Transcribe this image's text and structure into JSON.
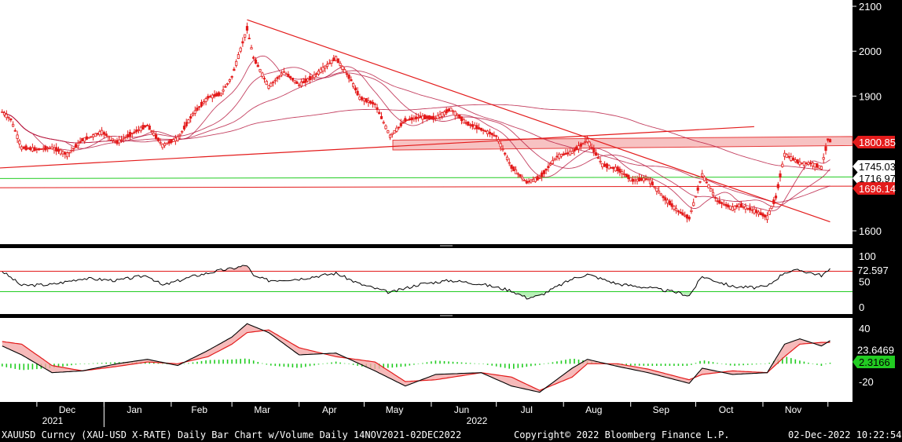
{
  "chart_data": [
    {
      "type": "candlestick",
      "panel": "price",
      "y_ticks": [
        "2100",
        "2000",
        "1900",
        "1600"
      ],
      "ylim": [
        1600,
        2100
      ],
      "price_badges": [
        {
          "label": "1800.85",
          "value": 1800.85,
          "color": "#e31b1b",
          "text_color": "#ffffff"
        },
        {
          "label": "1745.03",
          "value": 1745.03,
          "color": "#ffffff",
          "text_color": "#000000"
        },
        {
          "label": "1716.97",
          "value": 1716.97,
          "color": "#ffffff",
          "text_color": "#000000"
        },
        {
          "label": "1696.14",
          "value": 1696.14,
          "color": "#e31b1b",
          "text_color": "#ffffff"
        }
      ],
      "x_months": [
        "Dec",
        "Jan",
        "Feb",
        "Mar",
        "Apr",
        "May",
        "Jun",
        "Jul",
        "Aug",
        "Sep",
        "Oct",
        "Nov"
      ],
      "x_years": [
        "2021",
        "2022"
      ],
      "series_color": "#e31b1b",
      "support_levels": [
        {
          "value": 1720,
          "color": "#22cc22"
        },
        {
          "value": 1696,
          "color": "#e31b1b"
        }
      ],
      "resistance_zone": [
        1790,
        1810
      ],
      "trendlines": [
        {
          "from": [
            "2021-11-14",
            1740
          ],
          "to": [
            "2022-10-28",
            1832
          ]
        },
        {
          "from": [
            "2022-03-08",
            2070
          ],
          "to": [
            "2022-12-02",
            1620
          ]
        }
      ],
      "closes": [
        {
          "date": "2021-11-15",
          "value": 1865
        },
        {
          "date": "2021-11-19",
          "value": 1848
        },
        {
          "date": "2021-11-24",
          "value": 1785
        },
        {
          "date": "2021-12-01",
          "value": 1781
        },
        {
          "date": "2021-12-08",
          "value": 1785
        },
        {
          "date": "2021-12-15",
          "value": 1770
        },
        {
          "date": "2021-12-22",
          "value": 1802
        },
        {
          "date": "2021-12-31",
          "value": 1820
        },
        {
          "date": "2022-01-07",
          "value": 1797
        },
        {
          "date": "2022-01-14",
          "value": 1817
        },
        {
          "date": "2022-01-21",
          "value": 1835
        },
        {
          "date": "2022-01-28",
          "value": 1790
        },
        {
          "date": "2022-02-04",
          "value": 1806
        },
        {
          "date": "2022-02-11",
          "value": 1860
        },
        {
          "date": "2022-02-18",
          "value": 1897
        },
        {
          "date": "2022-02-24",
          "value": 1905
        },
        {
          "date": "2022-03-01",
          "value": 1943
        },
        {
          "date": "2022-03-08",
          "value": 2050
        },
        {
          "date": "2022-03-11",
          "value": 1985
        },
        {
          "date": "2022-03-18",
          "value": 1921
        },
        {
          "date": "2022-03-25",
          "value": 1954
        },
        {
          "date": "2022-04-01",
          "value": 1925
        },
        {
          "date": "2022-04-08",
          "value": 1945
        },
        {
          "date": "2022-04-18",
          "value": 1985
        },
        {
          "date": "2022-04-25",
          "value": 1935
        },
        {
          "date": "2022-04-29",
          "value": 1896
        },
        {
          "date": "2022-05-06",
          "value": 1882
        },
        {
          "date": "2022-05-13",
          "value": 1811
        },
        {
          "date": "2022-05-20",
          "value": 1846
        },
        {
          "date": "2022-05-27",
          "value": 1853
        },
        {
          "date": "2022-06-03",
          "value": 1851
        },
        {
          "date": "2022-06-10",
          "value": 1871
        },
        {
          "date": "2022-06-17",
          "value": 1840
        },
        {
          "date": "2022-06-24",
          "value": 1826
        },
        {
          "date": "2022-07-01",
          "value": 1811
        },
        {
          "date": "2022-07-08",
          "value": 1742
        },
        {
          "date": "2022-07-15",
          "value": 1708
        },
        {
          "date": "2022-07-21",
          "value": 1718
        },
        {
          "date": "2022-07-29",
          "value": 1766
        },
        {
          "date": "2022-08-05",
          "value": 1775
        },
        {
          "date": "2022-08-12",
          "value": 1802
        },
        {
          "date": "2022-08-19",
          "value": 1747
        },
        {
          "date": "2022-08-26",
          "value": 1737
        },
        {
          "date": "2022-09-02",
          "value": 1712
        },
        {
          "date": "2022-09-09",
          "value": 1716
        },
        {
          "date": "2022-09-16",
          "value": 1675
        },
        {
          "date": "2022-09-23",
          "value": 1643
        },
        {
          "date": "2022-09-28",
          "value": 1628
        },
        {
          "date": "2022-10-04",
          "value": 1725
        },
        {
          "date": "2022-10-11",
          "value": 1666
        },
        {
          "date": "2022-10-18",
          "value": 1650
        },
        {
          "date": "2022-10-21",
          "value": 1657
        },
        {
          "date": "2022-10-28",
          "value": 1645
        },
        {
          "date": "2022-11-03",
          "value": 1630
        },
        {
          "date": "2022-11-07",
          "value": 1675
        },
        {
          "date": "2022-11-11",
          "value": 1770
        },
        {
          "date": "2022-11-18",
          "value": 1751
        },
        {
          "date": "2022-11-23",
          "value": 1750
        },
        {
          "date": "2022-11-28",
          "value": 1741
        },
        {
          "date": "2022-12-01",
          "value": 1803
        },
        {
          "date": "2022-12-02",
          "value": 1800
        }
      ]
    },
    {
      "type": "line",
      "panel": "oscillator",
      "y_ticks": [
        "100",
        "50",
        "0"
      ],
      "ylim": [
        -10,
        110
      ],
      "threshold_upper": {
        "value": 70,
        "color": "#e31b1b"
      },
      "threshold_lower": {
        "value": 30,
        "color": "#22cc22"
      },
      "badge": {
        "label": "72.597",
        "value": 72.597
      },
      "values": [
        {
          "date": "2021-11-15",
          "value": 70
        },
        {
          "date": "2021-11-24",
          "value": 42
        },
        {
          "date": "2021-12-08",
          "value": 44
        },
        {
          "date": "2021-12-22",
          "value": 56
        },
        {
          "date": "2022-01-07",
          "value": 52
        },
        {
          "date": "2022-01-21",
          "value": 62
        },
        {
          "date": "2022-01-28",
          "value": 42
        },
        {
          "date": "2022-02-11",
          "value": 60
        },
        {
          "date": "2022-02-24",
          "value": 72
        },
        {
          "date": "2022-03-01",
          "value": 75
        },
        {
          "date": "2022-03-08",
          "value": 82
        },
        {
          "date": "2022-03-11",
          "value": 60
        },
        {
          "date": "2022-03-18",
          "value": 52
        },
        {
          "date": "2022-04-01",
          "value": 55
        },
        {
          "date": "2022-04-18",
          "value": 66
        },
        {
          "date": "2022-04-29",
          "value": 45
        },
        {
          "date": "2022-05-13",
          "value": 28
        },
        {
          "date": "2022-05-27",
          "value": 45
        },
        {
          "date": "2022-06-10",
          "value": 52
        },
        {
          "date": "2022-06-24",
          "value": 45
        },
        {
          "date": "2022-07-08",
          "value": 32
        },
        {
          "date": "2022-07-15",
          "value": 18
        },
        {
          "date": "2022-07-21",
          "value": 22
        },
        {
          "date": "2022-08-05",
          "value": 55
        },
        {
          "date": "2022-08-12",
          "value": 64
        },
        {
          "date": "2022-08-26",
          "value": 45
        },
        {
          "date": "2022-09-09",
          "value": 38
        },
        {
          "date": "2022-09-23",
          "value": 28
        },
        {
          "date": "2022-09-28",
          "value": 22
        },
        {
          "date": "2022-10-04",
          "value": 60
        },
        {
          "date": "2022-10-18",
          "value": 40
        },
        {
          "date": "2022-10-28",
          "value": 38
        },
        {
          "date": "2022-11-03",
          "value": 40
        },
        {
          "date": "2022-11-11",
          "value": 68
        },
        {
          "date": "2022-11-18",
          "value": 72
        },
        {
          "date": "2022-11-28",
          "value": 62
        },
        {
          "date": "2022-12-02",
          "value": 72.6
        }
      ]
    },
    {
      "type": "line",
      "panel": "macd",
      "y_ticks": [
        "40",
        "-20"
      ],
      "ylim": [
        -45,
        55
      ],
      "badges": [
        {
          "label": "23.6469",
          "value": 23.6469,
          "color": "#000000",
          "text_color": "#ffffff"
        },
        {
          "label": "2.3166",
          "value": 2.3166,
          "color": "#22cc22",
          "text_color": "#000000"
        }
      ],
      "histogram_color": "#22cc22",
      "macd": [
        {
          "date": "2021-11-15",
          "value": 20
        },
        {
          "date": "2021-11-24",
          "value": 10
        },
        {
          "date": "2021-12-08",
          "value": -10
        },
        {
          "date": "2021-12-22",
          "value": -8
        },
        {
          "date": "2022-01-07",
          "value": 0
        },
        {
          "date": "2022-01-21",
          "value": 5
        },
        {
          "date": "2022-02-04",
          "value": -2
        },
        {
          "date": "2022-02-18",
          "value": 15
        },
        {
          "date": "2022-03-01",
          "value": 30
        },
        {
          "date": "2022-03-08",
          "value": 45
        },
        {
          "date": "2022-03-18",
          "value": 35
        },
        {
          "date": "2022-04-01",
          "value": 10
        },
        {
          "date": "2022-04-18",
          "value": 12
        },
        {
          "date": "2022-05-06",
          "value": -8
        },
        {
          "date": "2022-05-20",
          "value": -25
        },
        {
          "date": "2022-06-03",
          "value": -12
        },
        {
          "date": "2022-06-24",
          "value": -10
        },
        {
          "date": "2022-07-08",
          "value": -25
        },
        {
          "date": "2022-07-21",
          "value": -32
        },
        {
          "date": "2022-08-05",
          "value": -5
        },
        {
          "date": "2022-08-12",
          "value": 5
        },
        {
          "date": "2022-08-26",
          "value": -3
        },
        {
          "date": "2022-09-09",
          "value": -10
        },
        {
          "date": "2022-09-28",
          "value": -22
        },
        {
          "date": "2022-10-04",
          "value": -5
        },
        {
          "date": "2022-10-18",
          "value": -12
        },
        {
          "date": "2022-11-03",
          "value": -10
        },
        {
          "date": "2022-11-11",
          "value": 22
        },
        {
          "date": "2022-11-18",
          "value": 28
        },
        {
          "date": "2022-11-28",
          "value": 20
        },
        {
          "date": "2022-12-02",
          "value": 26
        }
      ],
      "signal": [
        {
          "date": "2021-11-15",
          "value": 25
        },
        {
          "date": "2021-11-24",
          "value": 22
        },
        {
          "date": "2021-12-08",
          "value": -2
        },
        {
          "date": "2021-12-22",
          "value": -8
        },
        {
          "date": "2022-01-07",
          "value": -3
        },
        {
          "date": "2022-01-21",
          "value": 2
        },
        {
          "date": "2022-02-04",
          "value": 0
        },
        {
          "date": "2022-02-18",
          "value": 8
        },
        {
          "date": "2022-03-01",
          "value": 22
        },
        {
          "date": "2022-03-08",
          "value": 35
        },
        {
          "date": "2022-03-18",
          "value": 38
        },
        {
          "date": "2022-04-01",
          "value": 18
        },
        {
          "date": "2022-04-18",
          "value": 8
        },
        {
          "date": "2022-05-06",
          "value": 2
        },
        {
          "date": "2022-05-20",
          "value": -20
        },
        {
          "date": "2022-06-03",
          "value": -18
        },
        {
          "date": "2022-06-24",
          "value": -10
        },
        {
          "date": "2022-07-08",
          "value": -15
        },
        {
          "date": "2022-07-21",
          "value": -30
        },
        {
          "date": "2022-08-05",
          "value": -15
        },
        {
          "date": "2022-08-12",
          "value": 0
        },
        {
          "date": "2022-08-26",
          "value": 0
        },
        {
          "date": "2022-09-09",
          "value": -6
        },
        {
          "date": "2022-09-28",
          "value": -18
        },
        {
          "date": "2022-10-04",
          "value": -12
        },
        {
          "date": "2022-10-18",
          "value": -8
        },
        {
          "date": "2022-11-03",
          "value": -10
        },
        {
          "date": "2022-11-11",
          "value": 8
        },
        {
          "date": "2022-11-18",
          "value": 22
        },
        {
          "date": "2022-11-28",
          "value": 24
        },
        {
          "date": "2022-12-02",
          "value": 24
        }
      ]
    }
  ],
  "footer": {
    "title": "XAUUSD Curncy (XAU-USD X-RATE) Daily Bar Chart w/Volume  Daily 14NOV2021-02DEC2022",
    "copyright": "Copyright© 2022 Bloomberg Finance L.P.",
    "timestamp": "02-Dec-2022 10:22:54"
  }
}
